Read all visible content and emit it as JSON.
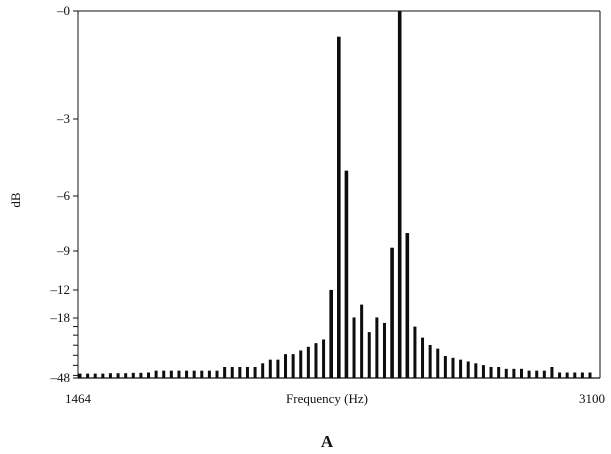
{
  "chart_data": {
    "type": "bar",
    "xlabel": "Frequency (Hz)",
    "ylabel": "dB",
    "panel_label": "A",
    "x_range": [
      1464,
      3100
    ],
    "x_tick_labels": [
      "1464",
      "3100"
    ],
    "y_tick_labels": [
      "–0",
      "–3",
      "–6",
      "–9",
      "–12",
      "–18",
      "–48"
    ],
    "y_tick_values": [
      0,
      -3,
      -6,
      -9,
      -12,
      -18,
      -48
    ],
    "y_minor_ticks_between_18_and_48": 6,
    "grid": false,
    "line_count": 68,
    "heights_relative": [
      0.012,
      0.012,
      0.012,
      0.012,
      0.013,
      0.013,
      0.013,
      0.014,
      0.014,
      0.015,
      0.02,
      0.02,
      0.02,
      0.02,
      0.02,
      0.02,
      0.02,
      0.02,
      0.02,
      0.03,
      0.03,
      0.03,
      0.03,
      0.03,
      0.04,
      0.05,
      0.05,
      0.065,
      0.065,
      0.075,
      0.085,
      0.095,
      0.105,
      0.24,
      0.93,
      0.565,
      0.165,
      0.2,
      0.125,
      0.165,
      0.15,
      0.355,
      1.0,
      0.395,
      0.14,
      0.11,
      0.09,
      0.08,
      0.06,
      0.055,
      0.05,
      0.045,
      0.04,
      0.035,
      0.03,
      0.03,
      0.025,
      0.025,
      0.025,
      0.02,
      0.02,
      0.02,
      0.03,
      0.015,
      0.015,
      0.015,
      0.015,
      0.015
    ]
  }
}
